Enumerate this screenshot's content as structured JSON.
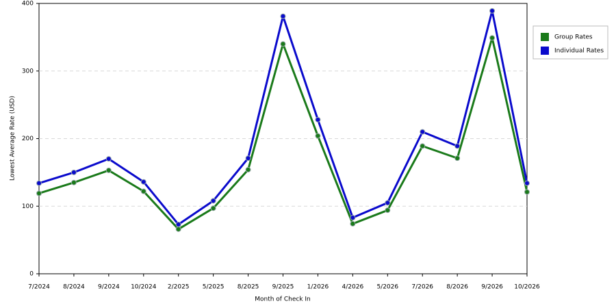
{
  "chart_data": {
    "type": "line",
    "x_label": "Month of Check In",
    "y_label": "Lowest Average Rate (USD)",
    "categories": [
      "7/2024",
      "8/2024",
      "9/2024",
      "10/2024",
      "2/2025",
      "5/2025",
      "8/2025",
      "9/2025",
      "1/2026",
      "4/2026",
      "5/2026",
      "7/2026",
      "8/2026",
      "9/2026",
      "10/2026"
    ],
    "series": [
      {
        "name": "Group Rates",
        "color": "#1a7a1a",
        "values": [
          119,
          135,
          153,
          122,
          66,
          97,
          154,
          340,
          204,
          74,
          94,
          189,
          171,
          349,
          121
        ]
      },
      {
        "name": "Individual Rates",
        "color": "#0a0acc",
        "values": [
          134,
          150,
          170,
          136,
          73,
          108,
          171,
          381,
          228,
          83,
          105,
          210,
          189,
          389,
          134
        ]
      }
    ],
    "ylim": [
      0,
      400
    ],
    "yticks": [
      0,
      100,
      200,
      300,
      400
    ],
    "grid": true
  }
}
